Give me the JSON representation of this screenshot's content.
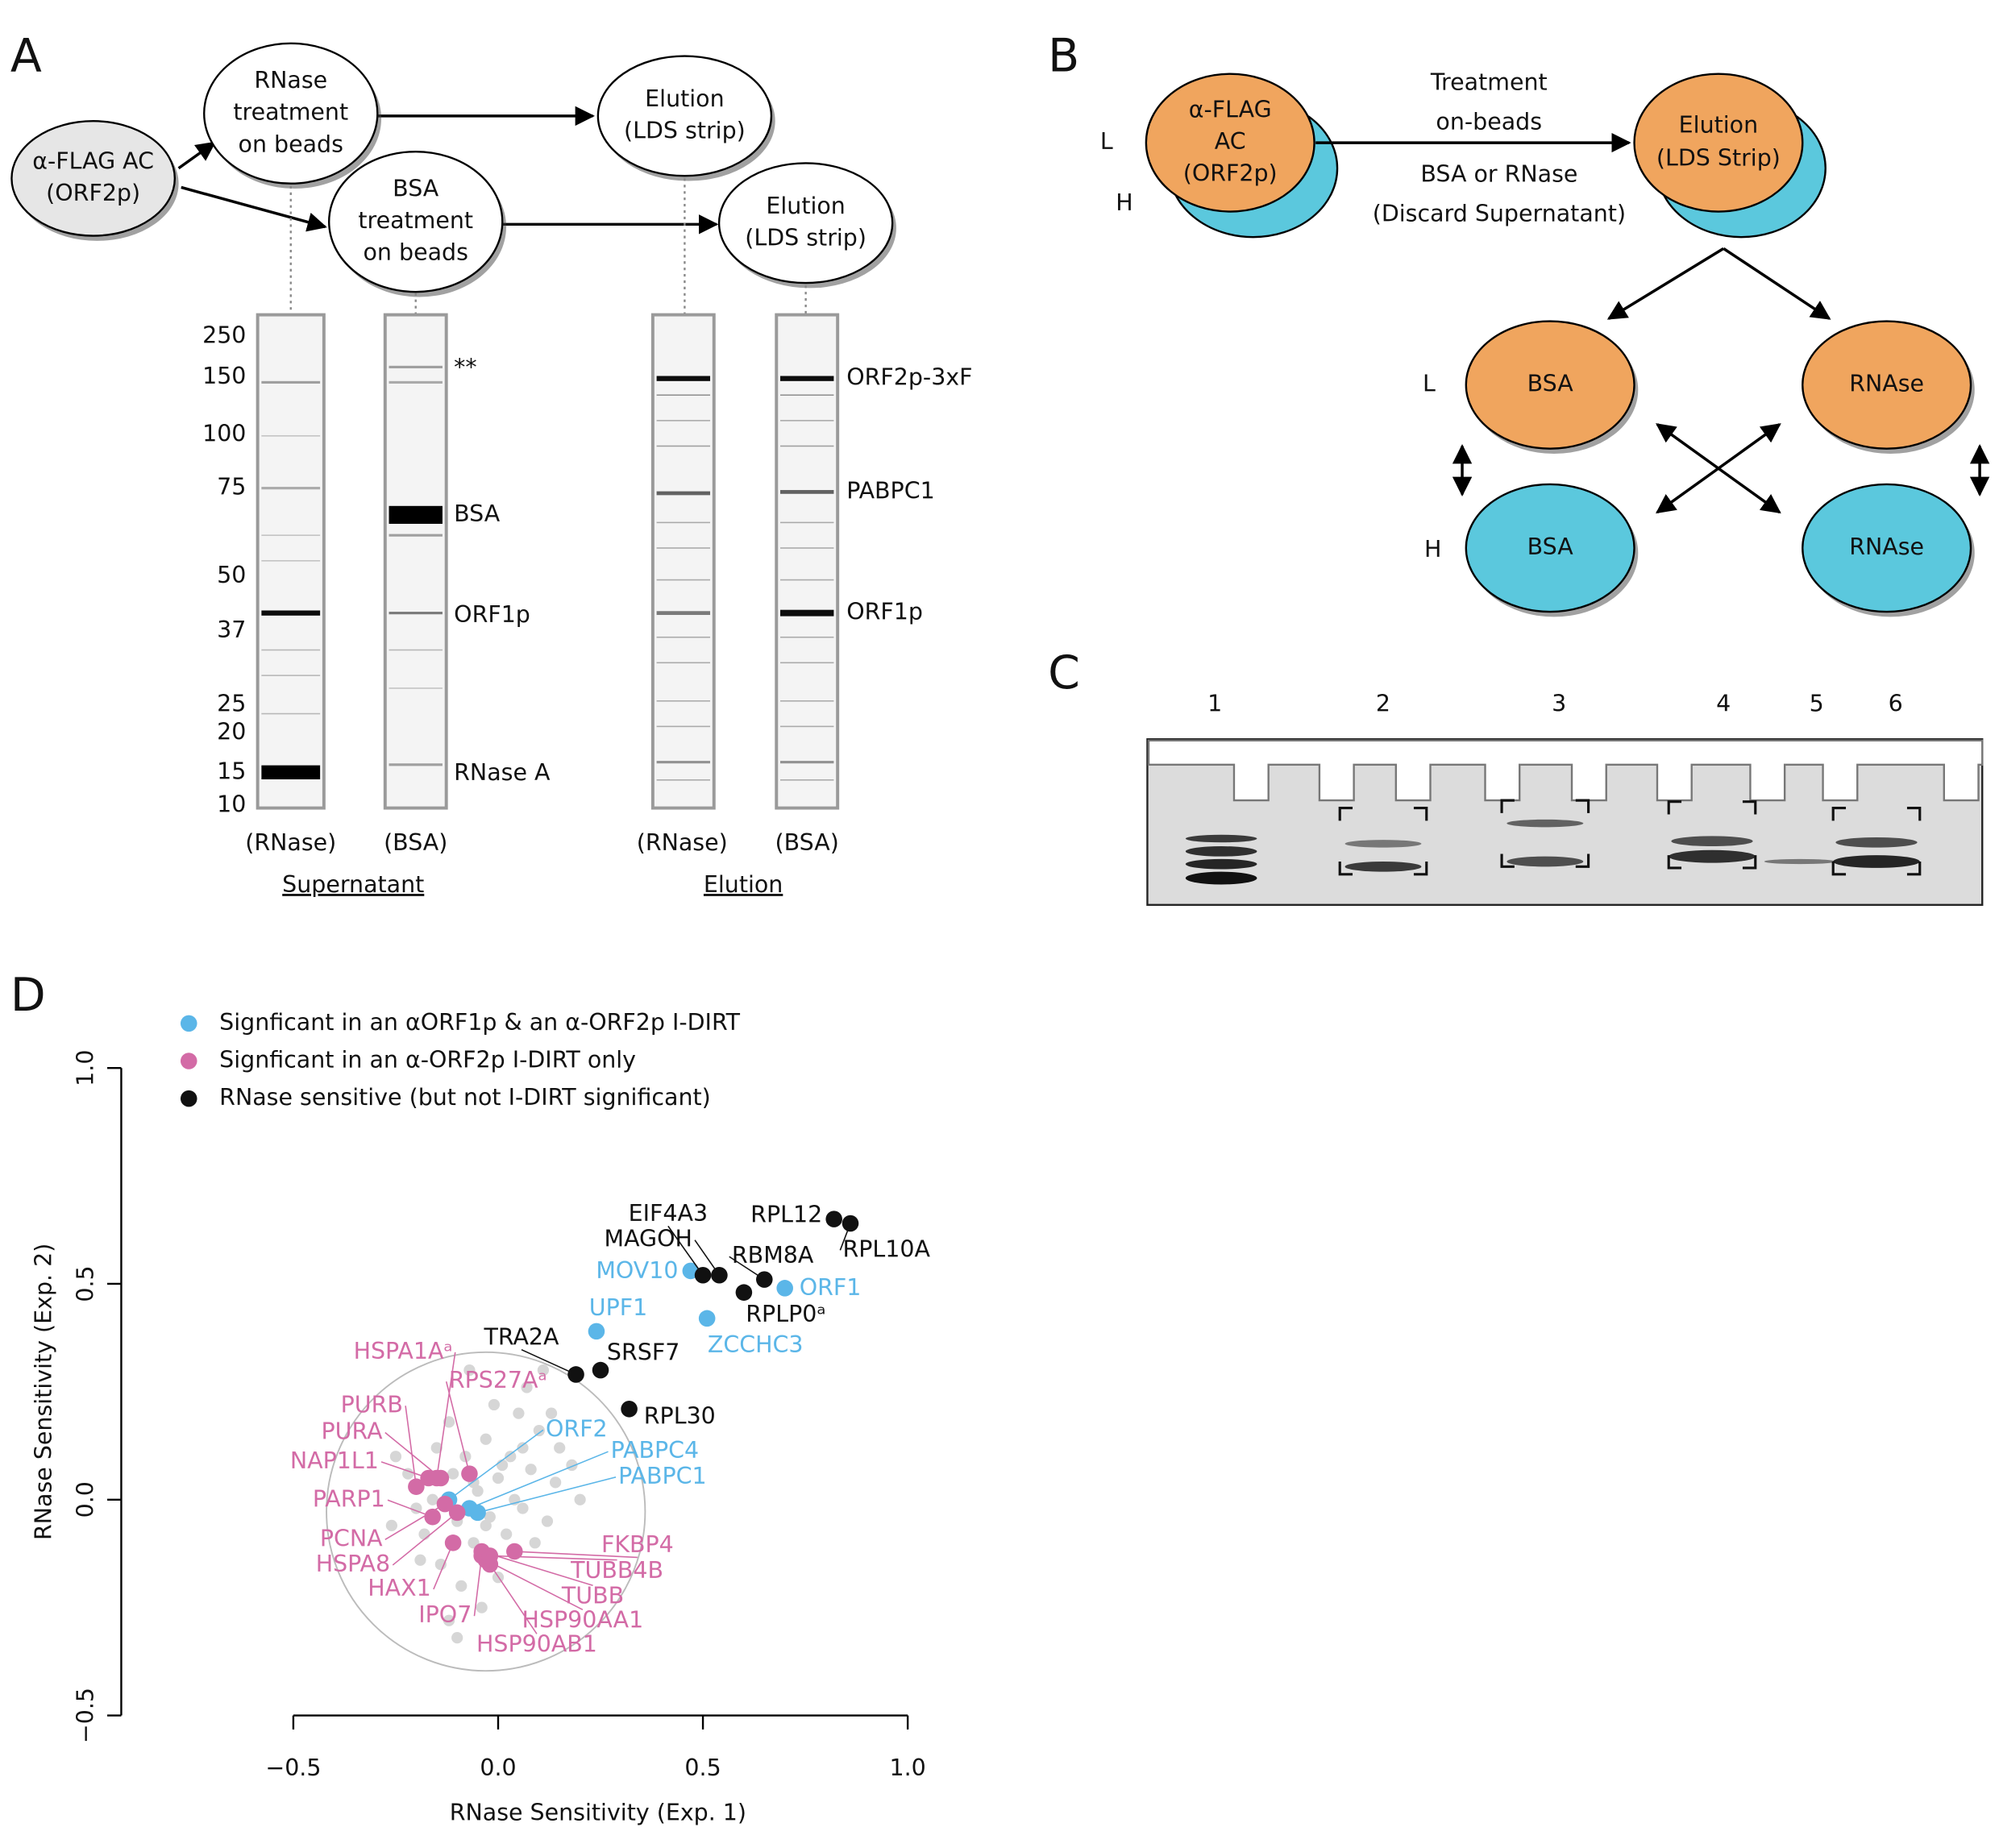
{
  "panel_labels": [
    "A",
    "B",
    "C",
    "D"
  ],
  "panel_a": {
    "nodes": [
      {
        "lines": [
          "α-FLAG AC",
          "(ORF2p)"
        ]
      },
      {
        "lines": [
          "RNase",
          "treatment",
          "on beads"
        ]
      },
      {
        "lines": [
          "BSA",
          "treatment",
          "on beads"
        ]
      },
      {
        "lines": [
          "Elution",
          "(LDS strip)"
        ]
      },
      {
        "lines": [
          "Elution",
          "(LDS strip)"
        ]
      }
    ],
    "markers": [
      250,
      150,
      100,
      75,
      50,
      37,
      25,
      20,
      15,
      10
    ],
    "supernatant_bands": [
      "**",
      "BSA",
      "ORF1p",
      "RNase A"
    ],
    "elution_bands": [
      "ORF2p-3xF",
      "PABPC1",
      "ORF1p"
    ],
    "lanes": [
      "(RNase)",
      "(BSA)",
      "(RNase)",
      "(BSA)"
    ],
    "groups": [
      "Supernatant",
      "Elution"
    ]
  },
  "panel_b": {
    "start": {
      "lines": [
        "α-FLAG",
        "AC",
        "(ORF2p)"
      ]
    },
    "elution": {
      "lines": [
        "Elution",
        "(LDS Strip)"
      ]
    },
    "arrow_top": [
      "Treatment",
      "on-beads"
    ],
    "arrow_bottom": [
      "BSA or RNase",
      "(Discard Supernatant)"
    ],
    "top_labels": [
      "L",
      "H"
    ],
    "bottom_labels": [
      "L",
      "H"
    ],
    "conditions": [
      "BSA",
      "RNAse",
      "BSA",
      "RNAse"
    ]
  },
  "panel_c": {
    "lanes": [
      "1",
      "2",
      "3",
      "4",
      "5",
      "6"
    ]
  },
  "chart_data": {
    "type": "scatter",
    "xlabel": "RNase Sensitivity (Exp. 1)",
    "ylabel": "RNase Sensitivity (Exp. 2)",
    "xlim": [
      -0.5,
      1.0
    ],
    "ylim": [
      -0.5,
      1.0
    ],
    "xticks": [
      {
        "value": -0.5,
        "label": "−0.5"
      },
      {
        "value": 0,
        "label": "0.0"
      },
      0.5,
      {
        "value": 1,
        "label": "1.0"
      }
    ],
    "yticks": [
      {
        "value": -0.5,
        "label": "−0.5"
      },
      {
        "value": 0,
        "label": "0.0"
      },
      0.5,
      {
        "value": 1,
        "label": "1.0"
      }
    ],
    "series": [
      {
        "color": "#d6d6d6",
        "x": [
          -0.25,
          -0.2,
          -0.18,
          -0.15,
          -0.12,
          -0.1,
          -0.08,
          -0.06,
          -0.05,
          -0.03,
          -0.02,
          0.0,
          0.02,
          0.03,
          0.05,
          0.06,
          0.08,
          0.1,
          0.12,
          0.14,
          0.15,
          -0.22,
          -0.14,
          -0.09,
          -0.04,
          -0.1,
          -0.12,
          0.0,
          0.04,
          -0.01,
          0.07,
          0.11,
          -0.07,
          0.18,
          0.2,
          -0.26,
          -0.16,
          -0.06,
          0.09,
          -0.19,
          0.01,
          -0.11,
          0.13,
          -0.03,
          0.06
        ],
        "y": [
          0.1,
          -0.02,
          -0.08,
          0.12,
          0.18,
          -0.05,
          0.1,
          -0.1,
          0.02,
          0.14,
          -0.04,
          0.05,
          -0.08,
          0.1,
          0.2,
          -0.02,
          0.07,
          0.16,
          -0.05,
          0.04,
          0.12,
          0.06,
          -0.15,
          -0.2,
          -0.25,
          -0.32,
          -0.28,
          -0.18,
          0.0,
          0.22,
          0.26,
          0.3,
          0.3,
          0.08,
          0.0,
          -0.06,
          0.0,
          0.04,
          -0.1,
          -0.14,
          0.08,
          0.06,
          0.2,
          -0.06,
          0.12
        ]
      },
      {
        "name": "Signficant in an αORF1p & an α-ORF2p I-DIRT",
        "color": "#5bb6e8",
        "x": [
          0.7,
          0.47,
          0.51,
          0.24,
          -0.12,
          -0.07,
          -0.05
        ],
        "y": [
          0.49,
          0.53,
          0.42,
          0.39,
          0.0,
          -0.02,
          -0.03
        ],
        "labels": [
          "ORF1",
          "MOV10",
          "ZCCHC3",
          "UPF1",
          "ORF2",
          "PABPC4",
          "PABPC1"
        ]
      },
      {
        "name": "Signficant in an α-ORF2p I-DIRT only",
        "color": "#d36ba6",
        "x": [
          -0.15,
          -0.07,
          -0.2,
          -0.14,
          -0.17,
          -0.16,
          -0.13,
          -0.1,
          -0.11,
          -0.04,
          -0.02,
          -0.03,
          -0.04,
          -0.02,
          0.04
        ],
        "y": [
          0.05,
          0.06,
          0.03,
          0.05,
          0.05,
          -0.04,
          -0.01,
          -0.03,
          -0.1,
          -0.13,
          -0.15,
          -0.14,
          -0.12,
          -0.13,
          -0.12
        ],
        "labels": [
          "HSPA1Aᵃ",
          "RPS27Aᵃ",
          "PURB",
          "PURA",
          "NAP1L1",
          "PARP1",
          "PCNA",
          "HSPA8",
          "HAX1",
          "IPO7",
          "HSP90AB1",
          "HSP90AA1",
          "TUBB",
          "TUBB4B",
          "FKBP4"
        ]
      },
      {
        "name": "RNase sensitive (but not I-DIRT significant)",
        "color": "#111111",
        "x": [
          0.82,
          0.86,
          0.5,
          0.54,
          0.65,
          0.6,
          0.19,
          0.25,
          0.32
        ],
        "y": [
          0.65,
          0.64,
          0.52,
          0.52,
          0.51,
          0.48,
          0.29,
          0.3,
          0.21
        ],
        "labels": [
          "RPL12",
          "RPL10A",
          "EIF4A3",
          "MAGOH",
          "RBM8A",
          "RPLP0ᵃ",
          "TRA2A",
          "SRSF7",
          "RPL30"
        ]
      }
    ]
  }
}
